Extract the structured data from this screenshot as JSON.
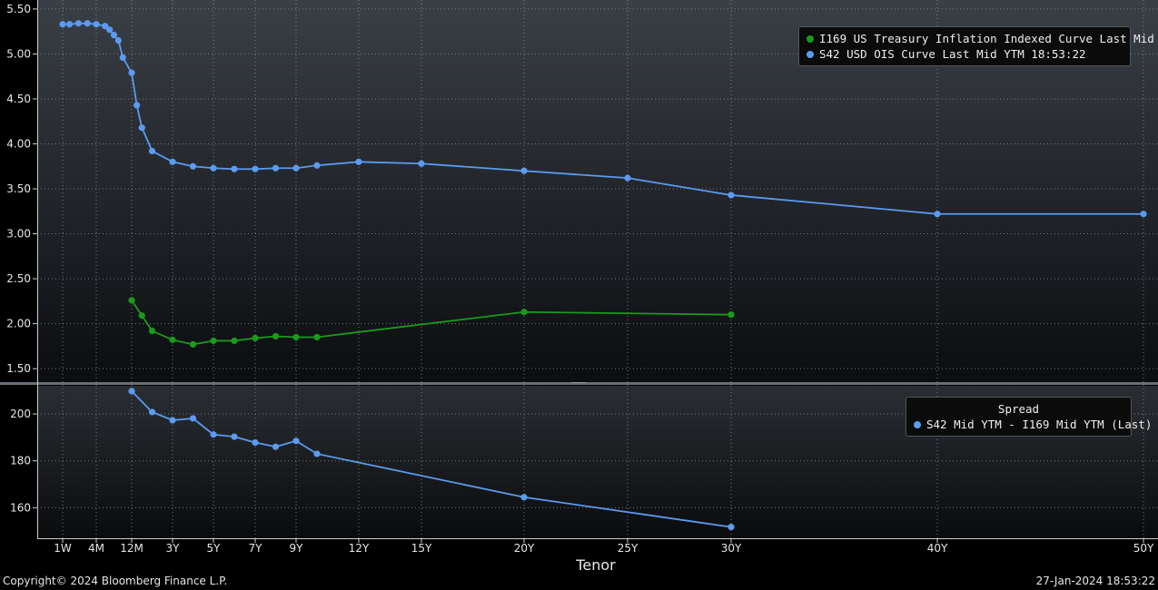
{
  "chart_data": [
    {
      "type": "line",
      "panel": "upper",
      "ylim": [
        1.35,
        5.6
      ],
      "yticks": [
        "5.50",
        "5.00",
        "4.50",
        "4.00",
        "3.50",
        "3.00",
        "2.50",
        "2.00",
        "1.50"
      ],
      "yvalues": [
        5.5,
        5.0,
        4.5,
        4.0,
        3.5,
        3.0,
        2.5,
        2.0,
        1.5
      ],
      "legend_placement": "top-right",
      "series": [
        {
          "name": "I169 US Treasury Inflation Indexed Curve Last Mid YTM",
          "color": "#1c9a1c",
          "x": [
            1.0,
            1.5,
            2.0,
            3.0,
            4.0,
            5.0,
            6.0,
            7.0,
            8.0,
            9.0,
            10.0,
            20.0,
            30.0
          ],
          "y": [
            2.26,
            2.09,
            1.92,
            1.82,
            1.77,
            1.81,
            1.81,
            1.84,
            1.86,
            1.85,
            1.85,
            2.13,
            2.1
          ]
        },
        {
          "name": "S42 USD OIS Curve Last Mid YTM 18:53:22",
          "color": "#5b9bf0",
          "x": [
            0.0192,
            0.0833,
            0.1667,
            0.25,
            0.3333,
            0.5,
            0.5833,
            0.6667,
            0.75,
            0.8333,
            1.0,
            1.25,
            1.5,
            2.0,
            3.0,
            4.0,
            5.0,
            6.0,
            7.0,
            8.0,
            9.0,
            10.0,
            12.0,
            15.0,
            20.0,
            25.0,
            30.0,
            40.0,
            50.0
          ],
          "y": [
            5.33,
            5.33,
            5.34,
            5.34,
            5.33,
            5.31,
            5.27,
            5.21,
            5.15,
            4.96,
            4.79,
            4.43,
            4.18,
            3.92,
            3.8,
            3.75,
            3.73,
            3.72,
            3.72,
            3.73,
            3.73,
            3.76,
            3.8,
            3.78,
            3.7,
            3.62,
            3.43,
            3.22,
            3.22
          ]
        }
      ]
    },
    {
      "type": "line",
      "panel": "lower",
      "ylim": [
        147,
        212
      ],
      "yticks": [
        "200",
        "180",
        "160"
      ],
      "yvalues": [
        200,
        180,
        160
      ],
      "legend_placement": "top-right",
      "legend_title": "Spread",
      "series": [
        {
          "name": "S42 Mid YTM - I169 Mid YTM (Last)",
          "color": "#5b9bf0",
          "x": [
            1.0,
            2.0,
            3.0,
            4.0,
            5.0,
            6.0,
            7.0,
            8.0,
            9.0,
            10.0,
            20.0,
            30.0
          ],
          "y": [
            209.7,
            200.8,
            197.3,
            198.1,
            191.2,
            190.3,
            187.8,
            186.0,
            188.5,
            183.0,
            164.5,
            151.8
          ]
        }
      ]
    }
  ],
  "xaxis": {
    "label": "Tenor",
    "ticks": [
      "1W",
      "4M",
      "12M",
      "3Y",
      "5Y",
      "7Y",
      "9Y",
      "12Y",
      "15Y",
      "20Y",
      "25Y",
      "30Y",
      "40Y",
      "50Y"
    ],
    "tick_years": [
      0.0192,
      0.3333,
      1.0,
      3.0,
      5.0,
      7.0,
      9.0,
      12.0,
      15.0,
      20.0,
      25.0,
      30.0,
      40.0,
      50.0
    ]
  },
  "footer": {
    "copyright": "Copyright© 2024 Bloomberg Finance L.P.",
    "timestamp": "27-Jan-2024 18:53:22"
  }
}
